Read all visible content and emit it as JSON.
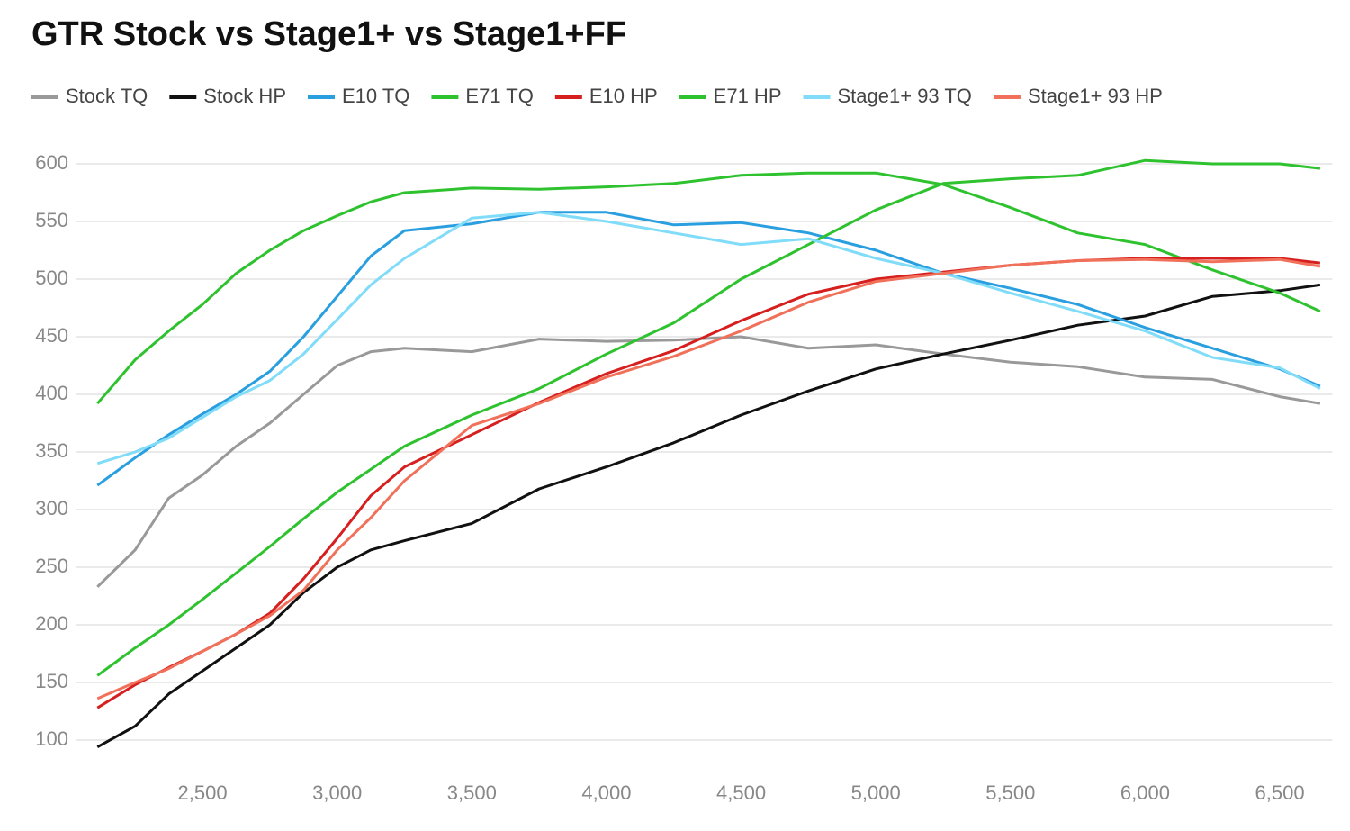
{
  "chart_data": {
    "type": "line",
    "title": "GTR Stock vs Stage1+ vs Stage1+FF",
    "x": [
      2110,
      2250,
      2375,
      2500,
      2625,
      2750,
      2875,
      3000,
      3125,
      3250,
      3500,
      3750,
      4000,
      4250,
      4500,
      4750,
      5000,
      5250,
      5500,
      5750,
      6000,
      6250,
      6500,
      6650
    ],
    "series": [
      {
        "name": "Stock TQ",
        "color": "#999999",
        "values": [
          233,
          265,
          310,
          330,
          355,
          375,
          400,
          425,
          437,
          440,
          437,
          448,
          446,
          447,
          450,
          440,
          443,
          435,
          428,
          424,
          415,
          413,
          398,
          392
        ]
      },
      {
        "name": "Stock HP",
        "color": "#111111",
        "values": [
          94,
          112,
          140,
          160,
          180,
          200,
          228,
          250,
          265,
          273,
          288,
          318,
          337,
          358,
          382,
          403,
          422,
          435,
          447,
          460,
          468,
          485,
          490,
          495
        ]
      },
      {
        "name": "E10 TQ",
        "color": "#2a9fe0",
        "values": [
          321,
          345,
          365,
          383,
          400,
          420,
          450,
          485,
          520,
          542,
          548,
          558,
          558,
          547,
          549,
          540,
          525,
          505,
          492,
          478,
          458,
          440,
          422,
          407
        ]
      },
      {
        "name": "E71 TQ",
        "color": "#2fc22f",
        "values": [
          392,
          430,
          455,
          478,
          505,
          525,
          542,
          555,
          567,
          575,
          579,
          578,
          580,
          583,
          590,
          592,
          592,
          582,
          562,
          540,
          530,
          508,
          488,
          472
        ]
      },
      {
        "name": "E10 HP",
        "color": "#d61f1f",
        "values": [
          128,
          148,
          163,
          177,
          192,
          210,
          240,
          275,
          312,
          337,
          365,
          393,
          418,
          438,
          464,
          487,
          500,
          506,
          512,
          516,
          518,
          518,
          518,
          514
        ]
      },
      {
        "name": "E71 HP",
        "color": "#2fc22f",
        "values": [
          156,
          180,
          200,
          222,
          245,
          268,
          292,
          315,
          335,
          355,
          382,
          405,
          435,
          462,
          500,
          530,
          560,
          583,
          587,
          590,
          603,
          600,
          600,
          596
        ]
      },
      {
        "name": "Stage1+ 93 TQ",
        "color": "#80dcf8",
        "values": [
          340,
          350,
          362,
          380,
          398,
          412,
          435,
          465,
          495,
          518,
          553,
          558,
          550,
          540,
          530,
          535,
          518,
          505,
          488,
          472,
          455,
          432,
          423,
          405
        ]
      },
      {
        "name": "Stage1+ 93 HP",
        "color": "#f0705a",
        "values": [
          136,
          150,
          162,
          177,
          192,
          208,
          230,
          265,
          293,
          325,
          373,
          392,
          415,
          433,
          455,
          480,
          498,
          505,
          512,
          516,
          517,
          515,
          517,
          511
        ]
      }
    ],
    "xlim": [
      2030,
      6695
    ],
    "ylim": [
      85,
      615
    ],
    "xticks": [
      {
        "value": 2500,
        "label": "2,500"
      },
      {
        "value": 3000,
        "label": "3,000"
      },
      {
        "value": 3500,
        "label": "3,500"
      },
      {
        "value": 4000,
        "label": "4,000"
      },
      {
        "value": 4500,
        "label": "4,500"
      },
      {
        "value": 5000,
        "label": "5,000"
      },
      {
        "value": 5500,
        "label": "5,500"
      },
      {
        "value": 6000,
        "label": "6,000"
      },
      {
        "value": 6500,
        "label": "6,500"
      }
    ],
    "yticks": [
      100,
      150,
      200,
      250,
      300,
      350,
      400,
      450,
      500,
      550,
      600
    ],
    "grid": true,
    "legend": "top"
  }
}
